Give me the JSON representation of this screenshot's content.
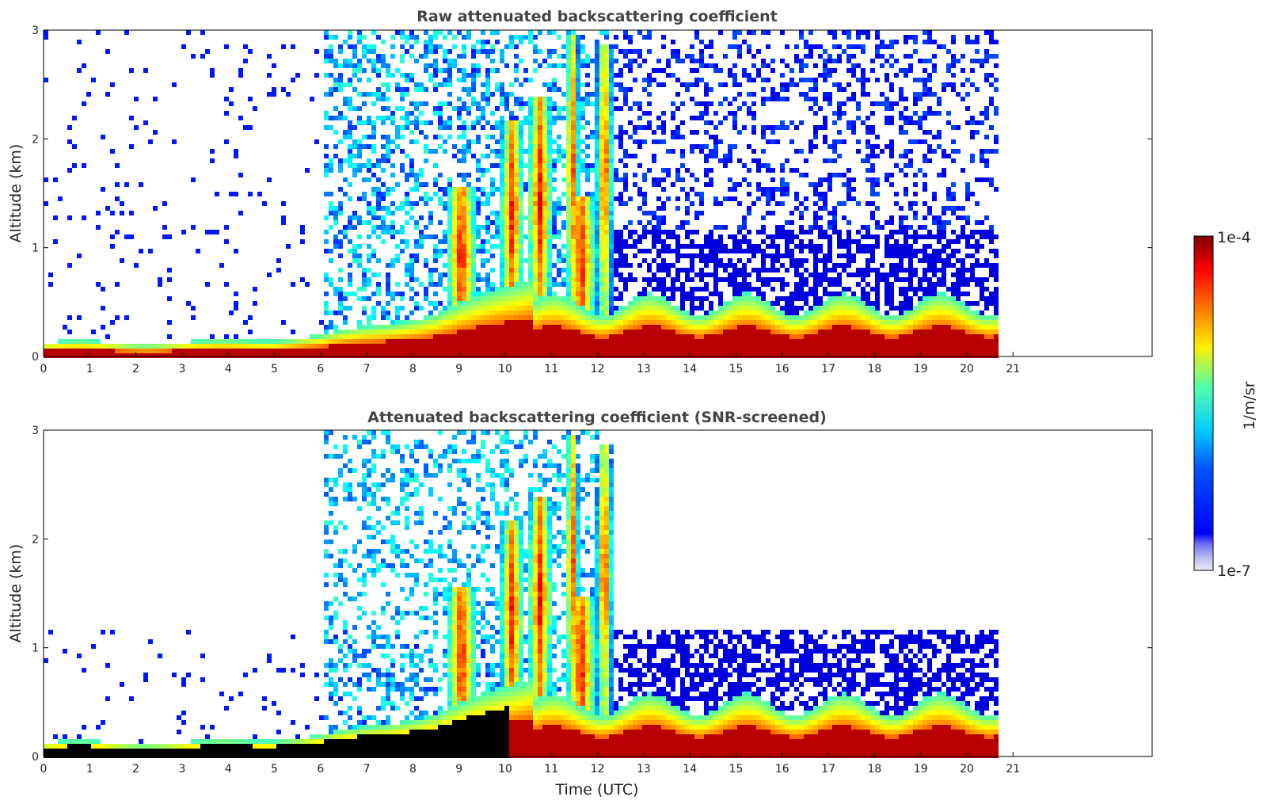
{
  "chart_data": [
    {
      "type": "heatmap",
      "title": "Raw attenuated backscattering coefficient",
      "xlabel": "",
      "ylabel": "Altitude (km)",
      "xlim": [
        0,
        24
      ],
      "ylim": [
        0,
        3
      ],
      "xticks": [
        0,
        1,
        2,
        3,
        4,
        5,
        6,
        7,
        8,
        9,
        10,
        11,
        12,
        13,
        14,
        15,
        16,
        17,
        18,
        19,
        20,
        21
      ],
      "xticklabels": [
        "0",
        "1",
        "2",
        "3",
        "4",
        "5",
        "6",
        "7",
        "8",
        "9",
        "10",
        "11",
        "12",
        "13",
        "14",
        "15",
        "16",
        "17",
        "18",
        "19",
        "20",
        "21"
      ],
      "yticks": [
        0,
        1,
        2,
        3
      ],
      "yticklabels": [
        "0",
        "1",
        "2",
        "3"
      ],
      "data_end_hour": 20.6,
      "screened": false
    },
    {
      "type": "heatmap",
      "title": "Attenuated backscattering coefficient (SNR-screened)",
      "xlabel": "Time (UTC)",
      "ylabel": "Altitude (km)",
      "xlim": [
        0,
        24
      ],
      "ylim": [
        0,
        3
      ],
      "xticks": [
        0,
        1,
        2,
        3,
        4,
        5,
        6,
        7,
        8,
        9,
        10,
        11,
        12,
        13,
        14,
        15,
        16,
        17,
        18,
        19,
        20,
        21
      ],
      "xticklabels": [
        "0",
        "1",
        "2",
        "3",
        "4",
        "5",
        "6",
        "7",
        "8",
        "9",
        "10",
        "11",
        "12",
        "13",
        "14",
        "15",
        "16",
        "17",
        "18",
        "19",
        "20",
        "21"
      ],
      "yticks": [
        0,
        1,
        2,
        3
      ],
      "yticklabels": [
        "0",
        "1",
        "2",
        "3"
      ],
      "data_end_hour": 20.6,
      "screened": true
    }
  ],
  "colorbar": {
    "label": "1/m/sr",
    "min_label": "1e-7",
    "max_label": "1e-4",
    "scale": "log",
    "min_value": 1e-07,
    "max_value": 0.0001
  }
}
